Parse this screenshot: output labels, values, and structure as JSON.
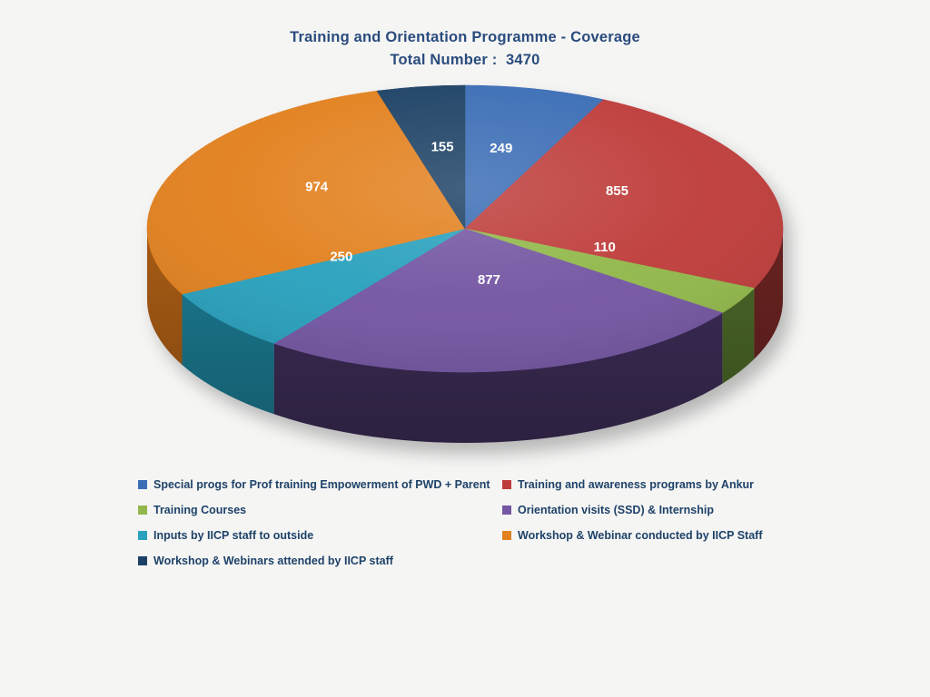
{
  "page": {
    "background": "#F5F5F4"
  },
  "chart_data": {
    "type": "pie",
    "effect": "3d",
    "title": "Training and Orientation Programme - Coverage",
    "subtitle": "Total Number :  3470",
    "total": 3470,
    "start_angle_deg": 0,
    "direction": "clockwise",
    "legend_position": "bottom",
    "title_color": "#2A4C7D",
    "legend_text_color": "#1E4268",
    "value_label_color": "#FFFFFF",
    "series": [
      {
        "label": "Special progs for Prof training Empowerment of PWD + Parent",
        "value": 249,
        "color": "#3B6DB5",
        "side_color": "#26497F"
      },
      {
        "label": "Training and awareness programs by Ankur",
        "value": 855,
        "color": "#BE3D3B",
        "side_color": "#732624"
      },
      {
        "label": "Training Courses",
        "value": 110,
        "color": "#92B84B",
        "side_color": "#52702B"
      },
      {
        "label": "Orientation visits (SSD) & Internship",
        "value": 877,
        "color": "#7557A3",
        "side_color": "#42315F"
      },
      {
        "label": "Inputs by IICP staff to outside",
        "value": 250,
        "color": "#2AA1BD",
        "side_color": "#1E86A0"
      },
      {
        "label": "Workshop & Webinar conducted by IICP Staff",
        "value": 974,
        "color": "#E2811F",
        "side_color": "#B96517"
      },
      {
        "label": "Workshop & Webinars attended by IICP staff",
        "value": 155,
        "color": "#1D4165",
        "side_color": "#12293F"
      }
    ]
  }
}
